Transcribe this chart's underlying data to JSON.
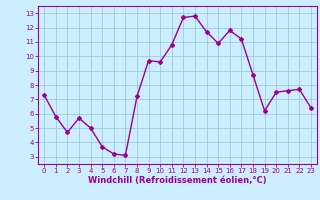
{
  "x": [
    0,
    1,
    2,
    3,
    4,
    5,
    6,
    7,
    8,
    9,
    10,
    11,
    12,
    13,
    14,
    15,
    16,
    17,
    18,
    19,
    20,
    21,
    22,
    23
  ],
  "y": [
    7.3,
    5.8,
    4.7,
    5.7,
    5.0,
    3.7,
    3.2,
    3.1,
    7.2,
    9.7,
    9.6,
    10.8,
    12.7,
    12.8,
    11.7,
    10.9,
    11.8,
    11.2,
    8.7,
    6.2,
    7.5,
    7.6,
    7.7,
    6.4
  ],
  "line_color": "#990099",
  "marker": "D",
  "markersize": 2,
  "linewidth": 1.0,
  "bg_color": "#cceeff",
  "grid_color": "#99ccdd",
  "xlabel": "Windchill (Refroidissement éolien,°C)",
  "ylabel_ticks": [
    3,
    4,
    5,
    6,
    7,
    8,
    9,
    10,
    11,
    12,
    13
  ],
  "xlim": [
    -0.5,
    23.5
  ],
  "ylim": [
    2.5,
    13.5
  ],
  "tick_color": "#990099",
  "axis_color": "#990099",
  "font_color": "#990099",
  "tick_fontsize": 5.0,
  "xlabel_fontsize": 6.0
}
